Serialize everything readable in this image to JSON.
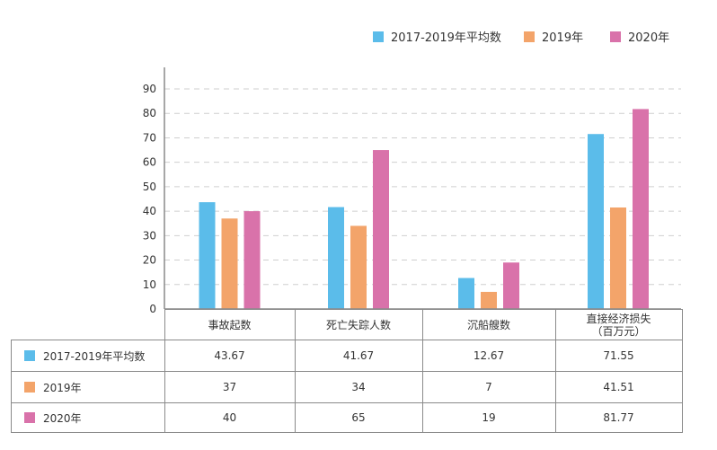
{
  "chart_data": {
    "type": "bar",
    "title": "",
    "xlabel": "",
    "ylabel": "",
    "ylim": [
      0,
      90
    ],
    "yticks": [
      0,
      10,
      20,
      30,
      40,
      50,
      60,
      70,
      80,
      90
    ],
    "grid": true,
    "legend_position": "top-right",
    "categories": [
      "事故起数",
      "死亡失踪人数",
      "沉船艘数",
      "直接经济损失"
    ],
    "category_sublabels": [
      "",
      "",
      "",
      "（百万元）"
    ],
    "series": [
      {
        "name": "2017-2019年平均数",
        "color": "#5bbcea",
        "values": [
          43.67,
          41.67,
          12.67,
          71.55
        ],
        "display": [
          "43.67",
          "41.67",
          "12.67",
          "71.55"
        ]
      },
      {
        "name": "2019年",
        "color": "#f3a46a",
        "values": [
          37,
          34,
          7,
          41.51
        ],
        "display": [
          "37",
          "34",
          "7",
          "41.51"
        ]
      },
      {
        "name": "2020年",
        "color": "#d972aa",
        "values": [
          40,
          65,
          19,
          81.77
        ],
        "display": [
          "40",
          "65",
          "19",
          "81.77"
        ]
      }
    ]
  }
}
